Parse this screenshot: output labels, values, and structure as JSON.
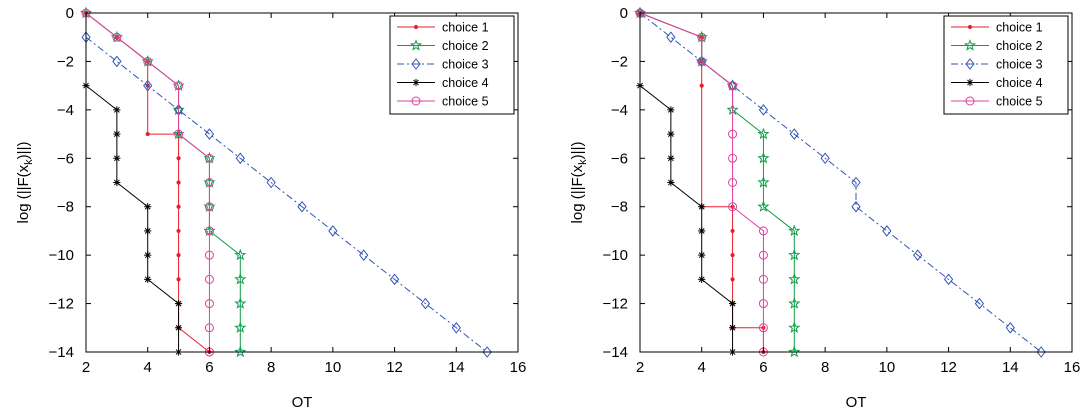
{
  "chart_data": [
    {
      "type": "line",
      "xlabel": "OT",
      "ylabel": "log (||F(x_k)||)",
      "xlim": [
        2,
        16
      ],
      "ylim": [
        -14,
        0
      ],
      "xticks": [
        2,
        4,
        6,
        8,
        10,
        12,
        14,
        16
      ],
      "yticks": [
        0,
        -2,
        -4,
        -6,
        -8,
        -10,
        -12,
        -14
      ],
      "grid": false,
      "legend_position": "top-right",
      "series": [
        {
          "name": "choice 1",
          "color": "#e8202a",
          "marker": "dot",
          "dash": "solid",
          "x": [
            2,
            3,
            4,
            4,
            4,
            5,
            5,
            5,
            5,
            5,
            5,
            5,
            5,
            5,
            6
          ],
          "y": [
            0,
            -1,
            -2,
            -3,
            -5,
            -5,
            -6,
            -7,
            -8,
            -9,
            -10,
            -11,
            -12,
            -13,
            -14
          ]
        },
        {
          "name": "choice 2",
          "color": "#0f9d48",
          "marker": "star",
          "dash": "solid",
          "x": [
            2,
            3,
            4,
            5,
            5,
            5,
            6,
            6,
            6,
            6,
            7,
            7,
            7,
            7,
            7
          ],
          "y": [
            0,
            -1,
            -2,
            -3,
            -4,
            -5,
            -6,
            -7,
            -8,
            -9,
            -10,
            -11,
            -12,
            -13,
            -14
          ]
        },
        {
          "name": "choice 3",
          "color": "#2f55b5",
          "marker": "diamond",
          "dash": "dashdot",
          "x": [
            2,
            3,
            4,
            5,
            6,
            7,
            8,
            9,
            10,
            11,
            12,
            13,
            14,
            15
          ],
          "y": [
            -1,
            -2,
            -3,
            -4,
            -5,
            -6,
            -7,
            -8,
            -9,
            -10,
            -11,
            -12,
            -13,
            -14
          ]
        },
        {
          "name": "choice 4",
          "color": "#000000",
          "marker": "asterisk",
          "dash": "solid",
          "x": [
            2,
            3,
            3,
            3,
            3,
            4,
            4,
            4,
            4,
            5,
            5,
            5
          ],
          "y": [
            -3,
            -4,
            -5,
            -6,
            -7,
            -8,
            -9,
            -10,
            -11,
            -12,
            -13,
            -14
          ]
        },
        {
          "name": "choice 5",
          "color": "#e040a0",
          "marker": "circle",
          "dash": "solid",
          "x": [
            2,
            3,
            4,
            5,
            5,
            6,
            6,
            6,
            6,
            6,
            6,
            6,
            6,
            6,
            6
          ],
          "y": [
            0,
            -1,
            -2,
            -3,
            -5,
            -6,
            -7,
            -8,
            -9,
            -10,
            -11,
            -12,
            -13,
            -14,
            -14
          ]
        }
      ]
    },
    {
      "type": "line",
      "xlabel": "OT",
      "ylabel": "log (||F(x_k)||)",
      "xlim": [
        2,
        16
      ],
      "ylim": [
        -14,
        0
      ],
      "xticks": [
        2,
        4,
        6,
        8,
        10,
        12,
        14,
        16
      ],
      "yticks": [
        0,
        -2,
        -4,
        -6,
        -8,
        -10,
        -12,
        -14
      ],
      "grid": false,
      "legend_position": "top-right",
      "series": [
        {
          "name": "choice 1",
          "color": "#e8202a",
          "marker": "dot",
          "dash": "solid",
          "x": [
            2,
            4,
            4,
            4,
            4,
            5,
            5,
            5,
            5,
            5,
            5,
            5,
            6,
            6
          ],
          "y": [
            0,
            -1,
            -2,
            -3,
            -8,
            -8,
            -9,
            -10,
            -11,
            -12,
            -13,
            -13,
            -13,
            -14
          ]
        },
        {
          "name": "choice 2",
          "color": "#0f9d48",
          "marker": "star",
          "dash": "solid",
          "x": [
            2,
            4,
            4,
            5,
            5,
            6,
            6,
            6,
            6,
            7,
            7,
            7,
            7,
            7,
            7
          ],
          "y": [
            0,
            -1,
            -2,
            -3,
            -4,
            -5,
            -6,
            -7,
            -8,
            -9,
            -10,
            -11,
            -12,
            -13,
            -14
          ]
        },
        {
          "name": "choice 3",
          "color": "#2f55b5",
          "marker": "diamond",
          "dash": "dashdot",
          "x": [
            2,
            3,
            4,
            5,
            6,
            7,
            8,
            9,
            9,
            10,
            11,
            12,
            13,
            14,
            15
          ],
          "y": [
            0,
            -1,
            -2,
            -3,
            -4,
            -5,
            -6,
            -7,
            -8,
            -9,
            -10,
            -11,
            -12,
            -13,
            -14
          ]
        },
        {
          "name": "choice 4",
          "color": "#000000",
          "marker": "asterisk",
          "dash": "solid",
          "x": [
            2,
            3,
            3,
            3,
            3,
            4,
            4,
            4,
            4,
            5,
            5,
            5
          ],
          "y": [
            -3,
            -4,
            -5,
            -6,
            -7,
            -8,
            -9,
            -10,
            -11,
            -12,
            -13,
            -14
          ]
        },
        {
          "name": "choice 5",
          "color": "#e040a0",
          "marker": "circle",
          "dash": "solid",
          "x": [
            2,
            4,
            4,
            5,
            5,
            5,
            5,
            5,
            6,
            6,
            6,
            6,
            6,
            6
          ],
          "y": [
            0,
            -1,
            -2,
            -3,
            -5,
            -6,
            -7,
            -8,
            -9,
            -10,
            -11,
            -12,
            -13,
            -14
          ]
        }
      ]
    }
  ]
}
